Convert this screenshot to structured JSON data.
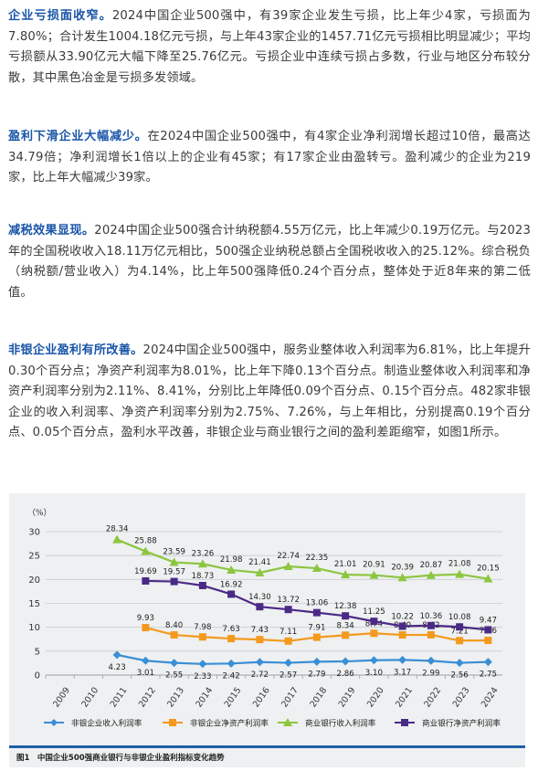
{
  "paragraphs": [
    {
      "lead": "企业亏损面收窄。",
      "body": "2024中国企业500强中，有39家企业发生亏损，比上年少4家，亏损面为7.80%；合计发生1004.18亿元亏损，与上年43家企业的1457.71亿元亏损相比明显减少；平均亏损额从33.90亿元大幅下降至25.76亿元。亏损企业中连续亏损占多数，行业与地区分布较分散，其中黑色冶金是亏损多发领域。"
    },
    {
      "lead": "盈利下滑企业大幅减少。",
      "body": "在2024中国企业500强中，有4家企业净利润增长超过10倍，最高达34.79倍；净利润增长1倍以上的企业有45家；有17家企业由盈转亏。盈利减少的企业为219家，比上年大幅减少39家。"
    },
    {
      "lead": "减税效果显现。",
      "body": "2024中国企业500强合计纳税额4.55万亿元，比上年减少0.19万亿元。与2023年的全国税收收入18.11万亿元相比，500强企业纳税总额占全国税收收入的25.12%。综合税负（纳税额/营业收入）为4.14%，比上年500强降低0.24个百分点，整体处于近8年来的第二低值。"
    },
    {
      "lead": "非银企业盈利有所改善。",
      "body": "2024中国企业500强中，服务业整体收入利润率为6.81%，比上年提升0.30个百分点；净资产利润率为8.01%，比上年下降0.13个百分点。制造业整体收入利润率和净资产利润率分别为2.11%、8.41%，分别比上年降低0.09个百分点、0.15个百分点。482家非银企业的收入利润率、净资产利润率分别为2.75%、7.26%，与上年相比，分别提高0.19个百分点、0.05个百分点，盈利水平改善，非银企业与商业银行之间的盈利差距缩窄，如图1所示。"
    }
  ],
  "figure": {
    "caption": "图1　中国企业500强商业银行与非银企业盈利指标变化趋势"
  },
  "chart_data": {
    "type": "line",
    "ylabel": "（%）",
    "ylim": [
      0,
      30
    ],
    "yticks": [
      0,
      5,
      10,
      15,
      20,
      25,
      30
    ],
    "categories": [
      "2009",
      "2010",
      "2011",
      "2012",
      "2013",
      "2014",
      "2015",
      "2016",
      "2017",
      "2018",
      "2019",
      "2020",
      "2021",
      "2022",
      "2023",
      "2024"
    ],
    "grid": true,
    "legend_position": "bottom",
    "series": [
      {
        "name": "非银企业收入利润率",
        "color": "#3a8fd6",
        "marker": "diamond",
        "values": [
          null,
          null,
          4.23,
          3.01,
          2.55,
          2.33,
          2.42,
          2.72,
          2.57,
          2.79,
          2.86,
          3.1,
          3.17,
          2.99,
          2.56,
          2.75
        ]
      },
      {
        "name": "非银企业净资产利润率",
        "color": "#f39a1e",
        "marker": "square",
        "values": [
          null,
          null,
          null,
          9.93,
          8.4,
          7.98,
          7.63,
          7.43,
          7.11,
          7.91,
          8.34,
          8.74,
          8.4,
          8.42,
          7.21,
          7.26
        ]
      },
      {
        "name": "商业银行收入利润率",
        "color": "#8cc63f",
        "marker": "triangle",
        "values": [
          null,
          null,
          28.34,
          25.88,
          23.59,
          23.26,
          21.98,
          21.41,
          22.74,
          22.35,
          21.01,
          20.91,
          20.39,
          20.87,
          21.08,
          20.15
        ]
      },
      {
        "name": "商业银行净资产利润率",
        "color": "#4b2a86",
        "marker": "square",
        "values": [
          null,
          null,
          null,
          19.69,
          19.57,
          18.73,
          16.92,
          14.3,
          13.72,
          13.06,
          12.38,
          11.25,
          10.22,
          10.36,
          10.08,
          9.47
        ]
      }
    ]
  }
}
